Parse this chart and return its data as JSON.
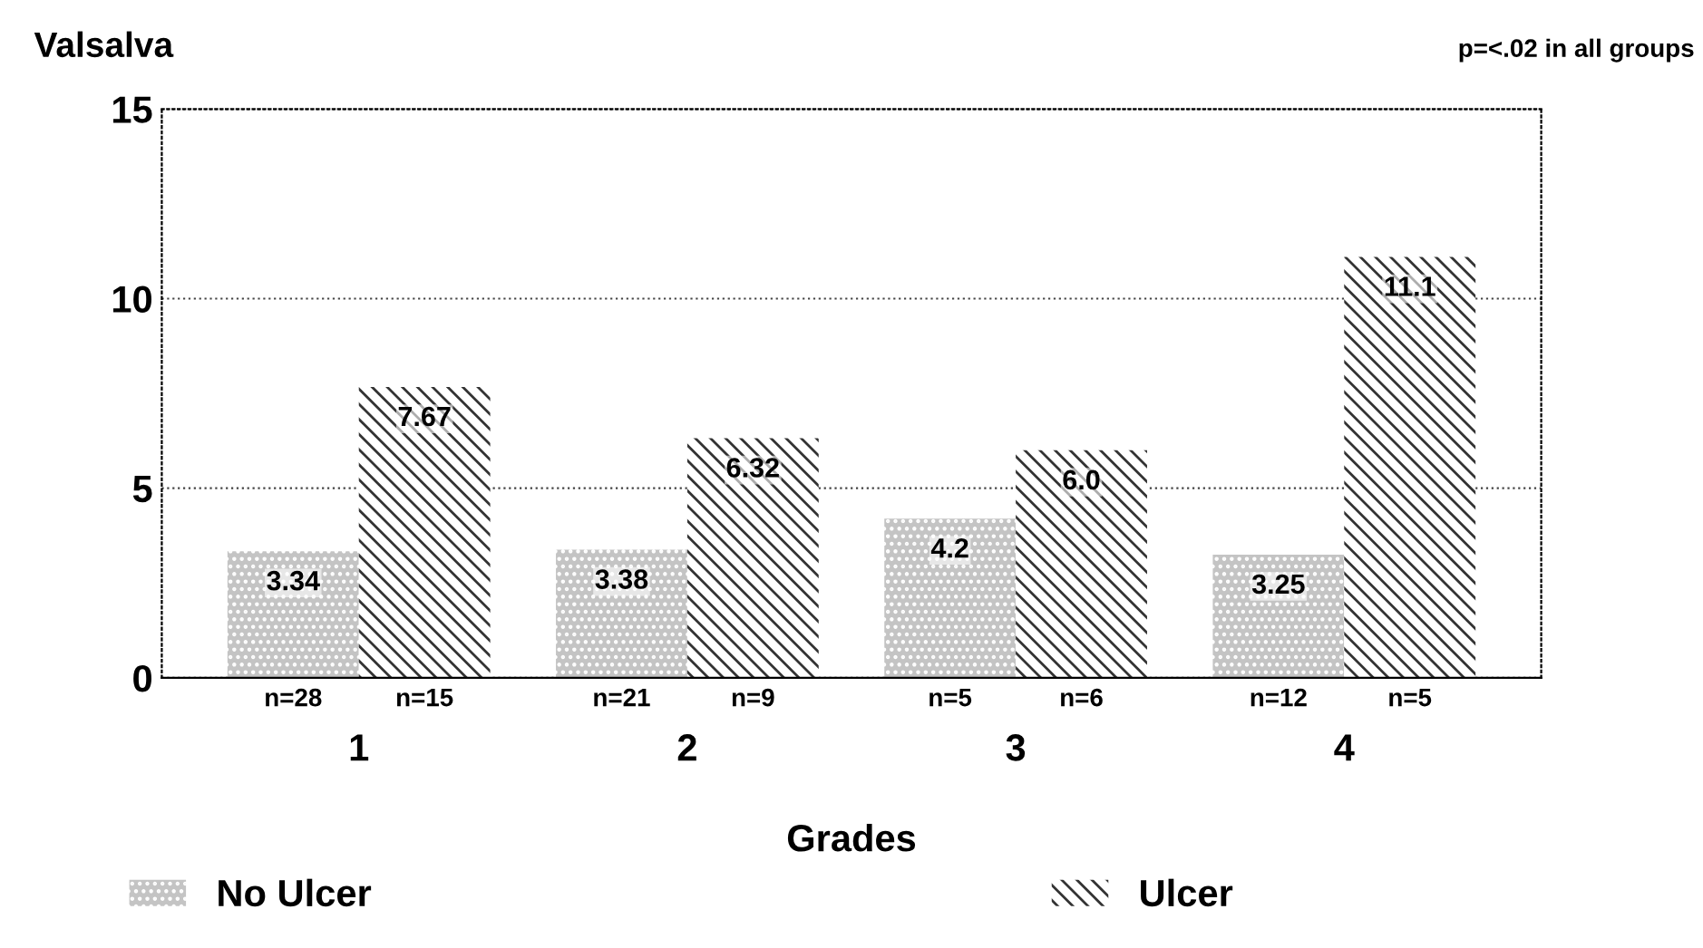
{
  "chart_data": {
    "type": "bar",
    "ylabel": "Valsalva",
    "xlabel": "Grades",
    "categories": [
      "1",
      "2",
      "3",
      "4"
    ],
    "series": [
      {
        "name": "No Ulcer",
        "color": "#c4c4c4",
        "values": [
          3.34,
          3.38,
          4.2,
          3.25
        ],
        "value_labels": [
          "3.34",
          "3.38",
          "4.2",
          "3.25"
        ]
      },
      {
        "name": "Ulcer",
        "color": "#333333",
        "values": [
          7.67,
          6.32,
          6.0,
          11.1
        ],
        "value_labels": [
          "7.67",
          "6.32",
          "6.0",
          "11.1"
        ]
      }
    ],
    "ylim": [
      0,
      15
    ],
    "yticks": [
      0,
      5,
      10,
      15
    ],
    "grid": "y",
    "legend": "bottom",
    "annotations": [
      "p=<.02 in all groups",
      "n=28",
      "n=15",
      "n=21",
      "n=9",
      "n=5",
      "n=6",
      "n=12",
      "n=5"
    ]
  }
}
